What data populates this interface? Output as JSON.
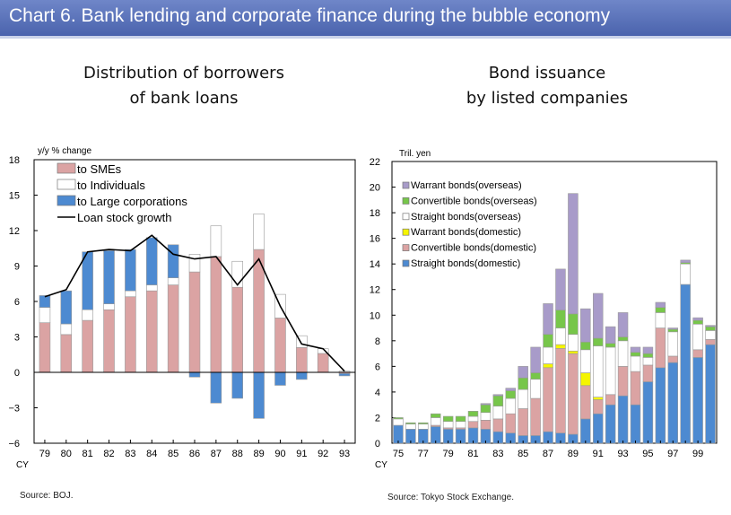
{
  "header": {
    "title": "Chart 6. Bank lending and corporate finance during the bubble economy"
  },
  "chart_data": [
    {
      "type": "bar",
      "title_line1": "Distribution of borrowers",
      "title_line2": "of bank loans",
      "ylabel": "y/y % change",
      "xlabel": "CY",
      "ylim": [
        -6,
        18
      ],
      "yticks": [
        -6,
        -3,
        0,
        3,
        6,
        9,
        12,
        15,
        18
      ],
      "categories": [
        "79",
        "80",
        "81",
        "82",
        "83",
        "84",
        "85",
        "86",
        "87",
        "88",
        "89",
        "90",
        "91",
        "92",
        "93"
      ],
      "series": [
        {
          "name": "to SMEs",
          "color": "#dba3a3",
          "values": [
            4.2,
            3.2,
            4.4,
            5.3,
            6.4,
            6.9,
            7.4,
            8.5,
            9.8,
            7.2,
            10.4,
            4.6,
            2.1,
            1.6,
            -0.1
          ]
        },
        {
          "name": "to Individuals",
          "color": "#ffffff",
          "values": [
            1.3,
            0.9,
            0.9,
            0.5,
            0.5,
            0.5,
            0.6,
            1.5,
            2.6,
            2.2,
            3.0,
            2.0,
            1.0,
            0.4,
            0.1
          ]
        },
        {
          "name": "to Large corporations",
          "color": "#4d8ad1",
          "values": [
            1.0,
            2.8,
            4.9,
            4.5,
            3.5,
            4.0,
            2.8,
            -0.4,
            -2.6,
            -2.2,
            -3.9,
            -1.1,
            -0.6,
            0.0,
            -0.2
          ]
        }
      ],
      "line": {
        "name": "Loan stock growth",
        "color": "#000000",
        "values": [
          6.4,
          7.0,
          10.2,
          10.4,
          10.3,
          11.6,
          10.0,
          9.6,
          9.8,
          7.4,
          9.6,
          5.6,
          2.4,
          2.0,
          0.1
        ]
      },
      "legend_position": "top-left",
      "source": "Source: BOJ."
    },
    {
      "type": "bar",
      "title_line1": "Bond issuance",
      "title_line2": "by listed companies",
      "ylabel": "Tril. yen",
      "xlabel": "CY",
      "ylim": [
        0,
        22
      ],
      "yticks": [
        0,
        2,
        4,
        6,
        8,
        10,
        12,
        14,
        16,
        18,
        20,
        22
      ],
      "categories": [
        "75",
        "76",
        "77",
        "78",
        "79",
        "80",
        "81",
        "82",
        "83",
        "84",
        "85",
        "86",
        "87",
        "88",
        "89",
        "90",
        "91",
        "92",
        "93",
        "94",
        "95",
        "96",
        "97",
        "98",
        "99",
        "00"
      ],
      "xtick_labels": [
        "75",
        "",
        "77",
        "",
        "79",
        "",
        "81",
        "",
        "83",
        "",
        "85",
        "",
        "87",
        "",
        "89",
        "",
        "91",
        "",
        "93",
        "",
        "95",
        "",
        "97",
        "",
        "99",
        ""
      ],
      "series": [
        {
          "name": "Straight bonds(domestic)",
          "color": "#4d8ad1",
          "values": [
            1.4,
            1.1,
            1.1,
            1.3,
            1.1,
            1.1,
            1.2,
            1.1,
            0.9,
            0.8,
            0.6,
            0.6,
            0.9,
            0.8,
            0.7,
            1.9,
            2.3,
            3.0,
            3.7,
            3.0,
            4.8,
            5.9,
            6.3,
            12.4,
            6.7,
            7.7
          ]
        },
        {
          "name": "Convertible bonds(domestic)",
          "color": "#dba3a3",
          "values": [
            0.0,
            0.0,
            0.0,
            0.1,
            0.1,
            0.1,
            0.5,
            0.7,
            1.0,
            1.5,
            2.1,
            2.9,
            5.0,
            6.6,
            6.3,
            2.6,
            1.1,
            0.8,
            2.3,
            2.6,
            1.3,
            3.1,
            0.5,
            0.0,
            0.6,
            0.4
          ]
        },
        {
          "name": "Warrant bonds(domestic)",
          "color": "#f5f500",
          "values": [
            0.0,
            0.0,
            0.0,
            0.0,
            0.0,
            0.0,
            0.0,
            0.0,
            0.0,
            0.0,
            0.0,
            0.0,
            0.3,
            0.3,
            0.2,
            1.0,
            0.2,
            0.0,
            0.0,
            0.0,
            0.0,
            0.0,
            0.0,
            0.0,
            0.0,
            0.0
          ]
        },
        {
          "name": "Straight bonds(overseas)",
          "color": "#ffffff",
          "values": [
            0.5,
            0.4,
            0.4,
            0.6,
            0.5,
            0.5,
            0.4,
            0.6,
            1.0,
            1.2,
            1.5,
            1.5,
            1.3,
            1.3,
            1.3,
            1.8,
            4.0,
            3.7,
            2.0,
            1.2,
            0.6,
            1.2,
            1.9,
            1.6,
            2.0,
            0.7
          ]
        },
        {
          "name": "Convertible bonds(overseas)",
          "color": "#77c64a",
          "values": [
            0.1,
            0.1,
            0.1,
            0.3,
            0.4,
            0.4,
            0.4,
            0.6,
            0.8,
            0.6,
            0.9,
            0.5,
            1.0,
            1.4,
            1.6,
            0.6,
            0.6,
            0.3,
            0.3,
            0.3,
            0.3,
            0.4,
            0.2,
            0.1,
            0.3,
            0.3
          ]
        },
        {
          "name": "Warrant bonds(overseas)",
          "color": "#a89bc9",
          "values": [
            0.0,
            0.0,
            0.0,
            0.0,
            0.0,
            0.0,
            0.0,
            0.1,
            0.1,
            0.2,
            0.9,
            2.0,
            2.4,
            3.2,
            9.4,
            2.6,
            3.5,
            1.3,
            1.9,
            0.4,
            0.5,
            0.4,
            0.1,
            0.2,
            0.2,
            0.1
          ]
        }
      ],
      "legend_position": "top-left",
      "source": "Source: Tokyo Stock Exchange."
    }
  ]
}
